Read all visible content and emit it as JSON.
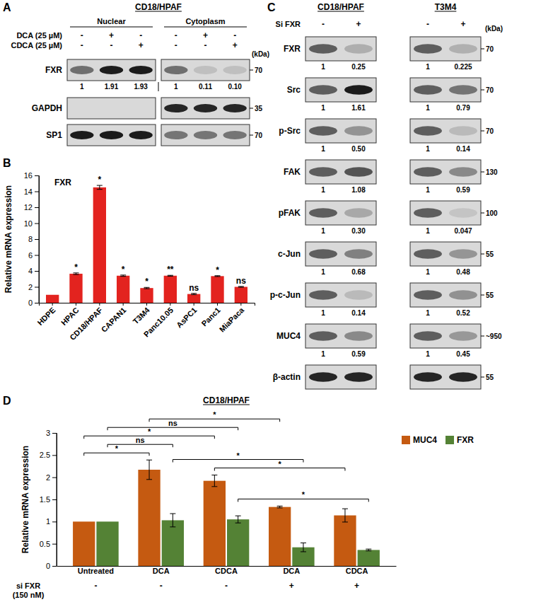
{
  "chart_data": [
    {
      "panel": "B",
      "type": "bar",
      "title": "FXR",
      "ylabel": "Relative mRNA expression",
      "categories": [
        "HDPE",
        "HPAC",
        "CD18/HPAF",
        "CAPAN1",
        "T3M4",
        "Panc10.05",
        "AsPC1",
        "Panc1",
        "MiaPaca"
      ],
      "values": [
        1,
        3.65,
        14.5,
        3.4,
        1.85,
        3.4,
        1.1,
        3.35,
        2
      ],
      "errors": [
        0,
        0.1,
        0.25,
        0.08,
        0.08,
        0.05,
        0.08,
        0.05,
        0.05
      ],
      "significance": [
        null,
        "*",
        "*",
        "*",
        "*",
        "**",
        "ns",
        "*",
        "ns"
      ],
      "color": "#e3231f",
      "ylim": [
        0,
        16
      ],
      "yticks": [
        0,
        2,
        4,
        6,
        8,
        10,
        12,
        14,
        16
      ]
    },
    {
      "panel": "D",
      "type": "bar",
      "title": "CD18/HPAF",
      "ylabel": "Relative mRNA expression",
      "categories": [
        "Untreated",
        "DCA",
        "CDCA",
        "DCA",
        "CDCA"
      ],
      "series": [
        {
          "name": "MUC4",
          "color": "#c55a11",
          "values": [
            1,
            2.17,
            1.92,
            1.33,
            1.14
          ],
          "errors": [
            0,
            0.22,
            0.13,
            0.02,
            0.15
          ]
        },
        {
          "name": "FXR",
          "color": "#548235",
          "values": [
            1,
            1.03,
            1.05,
            0.42,
            0.36
          ],
          "errors": [
            0,
            0.15,
            0.08,
            0.1,
            0.02
          ]
        }
      ],
      "ylim": [
        0,
        3
      ],
      "yticks": [
        0,
        0.5,
        1,
        1.5,
        2,
        2.5,
        3
      ],
      "legend": "top-right",
      "treatment": {
        "label": "si FXR",
        "dose": "(150 nM)",
        "values": [
          "-",
          "-",
          "-",
          "+",
          "+"
        ]
      },
      "comparisons": [
        {
          "from": [
            0,
            0
          ],
          "to": [
            2,
            0
          ],
          "label": "*"
        },
        {
          "from": [
            0,
            1
          ],
          "to": [
            2,
            1
          ],
          "label": "ns"
        },
        {
          "from": [
            0,
            1
          ],
          "to": [
            1,
            1
          ],
          "label": "ns"
        },
        {
          "from": [
            0,
            0
          ],
          "to": [
            1,
            0
          ],
          "label": "*"
        },
        {
          "from": [
            1,
            1
          ],
          "to": [
            3,
            1
          ],
          "label": "*"
        },
        {
          "from": [
            1,
            0
          ],
          "to": [
            3,
            0
          ],
          "label": "*"
        },
        {
          "from": [
            2,
            0
          ],
          "to": [
            4,
            0
          ],
          "label": "*"
        },
        {
          "from": [
            2,
            1
          ],
          "to": [
            4,
            1
          ],
          "label": "*"
        }
      ]
    }
  ],
  "blots": [
    {
      "panel": "A",
      "title": "CD18/HPAF",
      "groups": [
        {
          "name": "Nuclear",
          "lanes": 3
        },
        {
          "name": "Cytoplasm",
          "lanes": 3
        }
      ],
      "treatments": [
        {
          "label": "DCA (25 µM)",
          "values": [
            "-",
            "+",
            "-",
            "-",
            "+",
            "-"
          ]
        },
        {
          "label": "CDCA (25 µM)",
          "values": [
            "-",
            "-",
            "+",
            "-",
            "-",
            "+"
          ]
        }
      ],
      "unit": "(kDa)",
      "rows": [
        {
          "protein": "FXR",
          "marker": 70,
          "quant": [
            1,
            1.91,
            1.93,
            1,
            0.11,
            {
              "value": 0.1,
              "label": "0.10"
            }
          ]
        },
        {
          "protein": "GAPDH",
          "marker": 35
        },
        {
          "protein": "SP1",
          "marker": 70
        }
      ]
    },
    {
      "panel": "C",
      "groups": [
        {
          "name": "CD18/HPAF",
          "lanes": 2
        },
        {
          "name": "T3M4",
          "lanes": 2
        }
      ],
      "treatments": [
        {
          "label": "Si FXR",
          "values": [
            "-",
            "+",
            "-",
            "+"
          ]
        }
      ],
      "unit": "(kDa)",
      "rows": [
        {
          "protein": "FXR",
          "marker": 70,
          "quant": [
            1,
            0.25,
            1,
            0.225
          ]
        },
        {
          "protein": "Src",
          "marker": 70,
          "quant": [
            1,
            1.61,
            1,
            0.79
          ]
        },
        {
          "protein": "p-Src",
          "marker": 70,
          "quant": [
            1,
            {
              "value": 0.5,
              "label": "0.50"
            },
            1,
            0.14
          ]
        },
        {
          "protein": "FAK",
          "marker": 130,
          "quant": [
            1,
            1.08,
            1,
            0.59
          ]
        },
        {
          "protein": "pFAK",
          "marker": 100,
          "quant": [
            1,
            {
              "value": 0.3,
              "label": "0.30"
            },
            1,
            0.047
          ]
        },
        {
          "protein": "c-Jun",
          "marker": 55,
          "quant": [
            1,
            0.68,
            1,
            0.48
          ]
        },
        {
          "protein": "p-c-Jun",
          "marker": 55,
          "quant": [
            1,
            0.14,
            1,
            0.52
          ]
        },
        {
          "protein": "MUC4",
          "marker": {
            "value": 950,
            "label": "~950"
          },
          "quant": [
            1,
            0.59,
            1,
            0.45
          ]
        },
        {
          "protein": "β-actin",
          "marker": 55
        }
      ]
    }
  ]
}
